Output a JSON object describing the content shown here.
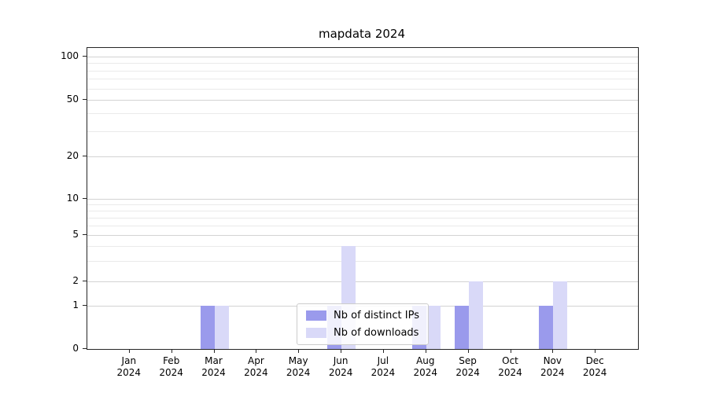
{
  "chart_data": {
    "type": "bar",
    "title": "mapdata 2024",
    "categories": [
      "Jan",
      "Feb",
      "Mar",
      "Apr",
      "May",
      "Jun",
      "Jul",
      "Aug",
      "Sep",
      "Oct",
      "Nov",
      "Dec"
    ],
    "category_year": "2024",
    "series": [
      {
        "name": "Nb of distinct IPs",
        "color": "#9a9aec",
        "values": [
          0,
          0,
          1,
          0,
          0,
          1,
          0,
          1,
          1,
          0,
          1,
          0
        ]
      },
      {
        "name": "Nb of downloads",
        "color": "#d9d9f8",
        "values": [
          0,
          0,
          1,
          0,
          0,
          4,
          0,
          1,
          2,
          0,
          2,
          0
        ]
      }
    ],
    "yaxis": {
      "scale": "symlog",
      "major_ticks": [
        0,
        1,
        2,
        5,
        10,
        20,
        50,
        100
      ],
      "minor_ticks": [
        3,
        4,
        6,
        7,
        8,
        9,
        30,
        40,
        60,
        70,
        80,
        90
      ],
      "ylim": [
        0,
        115
      ]
    },
    "xlabel": "",
    "ylabel": "",
    "grid": "horizontal",
    "legend_position": "lower center"
  },
  "colors": {
    "grid_major": "#d3d3d3",
    "grid_minor": "#eaeaea",
    "axis": "#262626",
    "background": "#ffffff"
  }
}
